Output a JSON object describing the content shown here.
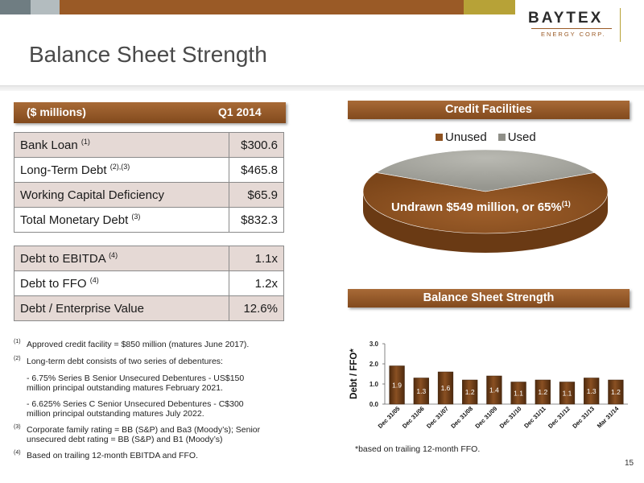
{
  "header": {
    "title": "Balance Sheet Strength",
    "logo_name": "BAYTEX",
    "logo_sub": "ENERGY CORP."
  },
  "table": {
    "col_left": "($ millions)",
    "col_right": "Q1 2014",
    "rows": [
      {
        "label": "Bank Loan",
        "note": "(1)",
        "value": "$300.6"
      },
      {
        "label": "Long-Term Debt",
        "note": "(2),(3)",
        "value": "$465.8"
      },
      {
        "label": "Working Capital Deficiency",
        "note": "",
        "value": "$65.9"
      },
      {
        "label": "Total Monetary Debt",
        "note": "(3)",
        "value": "$832.3"
      }
    ],
    "ratios": [
      {
        "label": "Debt to EBITDA",
        "note": "(4)",
        "value": "1.1x"
      },
      {
        "label": "Debt to FFO",
        "note": "(4)",
        "value": "1.2x"
      },
      {
        "label": "Debt  / Enterprise Value",
        "note": "",
        "value": "12.6%"
      }
    ]
  },
  "footnotes": [
    {
      "num": "(1)",
      "text": "Approved credit facility = $850 million (matures June 2017)."
    },
    {
      "num": "(2)",
      "text": "Long-term debt consists of two series of debentures:"
    },
    {
      "num": "",
      "text": "-  6.75% Series B Senior Unsecured Debentures - US$150"
    },
    {
      "num": "",
      "text": "million principal outstanding matures February 2021."
    },
    {
      "num": "",
      "text": "-  6.625% Series C Senior Unsecured Debentures - C$300"
    },
    {
      "num": "",
      "text": "million principal outstanding matures July 2022."
    },
    {
      "num": "(3)",
      "text": "Corporate family rating = BB (S&P) and Ba3 (Moody’s); Senior"
    },
    {
      "num": "",
      "text": "unsecured debt rating = BB (S&P) and B1 (Moody’s)"
    },
    {
      "num": "(4)",
      "text": "Based on trailing 12-month EBITDA and FFO."
    }
  ],
  "credit": {
    "title": "Credit Facilities",
    "label_text": "Undrawn $549 million, or 65%",
    "label_note": "(1)"
  },
  "bss_title": "Balance Sheet Strength",
  "chart_note": "*based on trailing 12-month FFO.",
  "page_number": "15",
  "colors": {
    "accent_brown": "#8e5220",
    "used_gray": "#a8a8a0",
    "bar_brown": "#6b3a14"
  },
  "chart_data": [
    {
      "type": "pie",
      "title": "Credit Facilities",
      "categories": [
        "Unused",
        "Used"
      ],
      "values": [
        65,
        35
      ],
      "legend": "top"
    },
    {
      "type": "bar",
      "title": "Balance Sheet Strength",
      "categories": [
        "Dec 31/05",
        "Dec 31/06",
        "Dec 31/07",
        "Dec 31/08",
        "Dec 31/09",
        "Dec 31/10",
        "Dec 31/11",
        "Dec 31/12",
        "Dec 31/13",
        "Mar 31/14"
      ],
      "values": [
        1.9,
        1.3,
        1.6,
        1.2,
        1.4,
        1.1,
        1.2,
        1.1,
        1.3,
        1.2
      ],
      "value_labels": [
        "1.9",
        "1.3",
        "1.6",
        "1.2",
        "1.4",
        "1.1",
        "1.2",
        "1.1",
        "1.3",
        "1.2"
      ],
      "ylabel": "Debt / FFO*",
      "yticks": [
        "0.0",
        "1.0",
        "2.0",
        "3.0"
      ],
      "ylim": [
        0,
        3
      ],
      "grid": false
    }
  ]
}
